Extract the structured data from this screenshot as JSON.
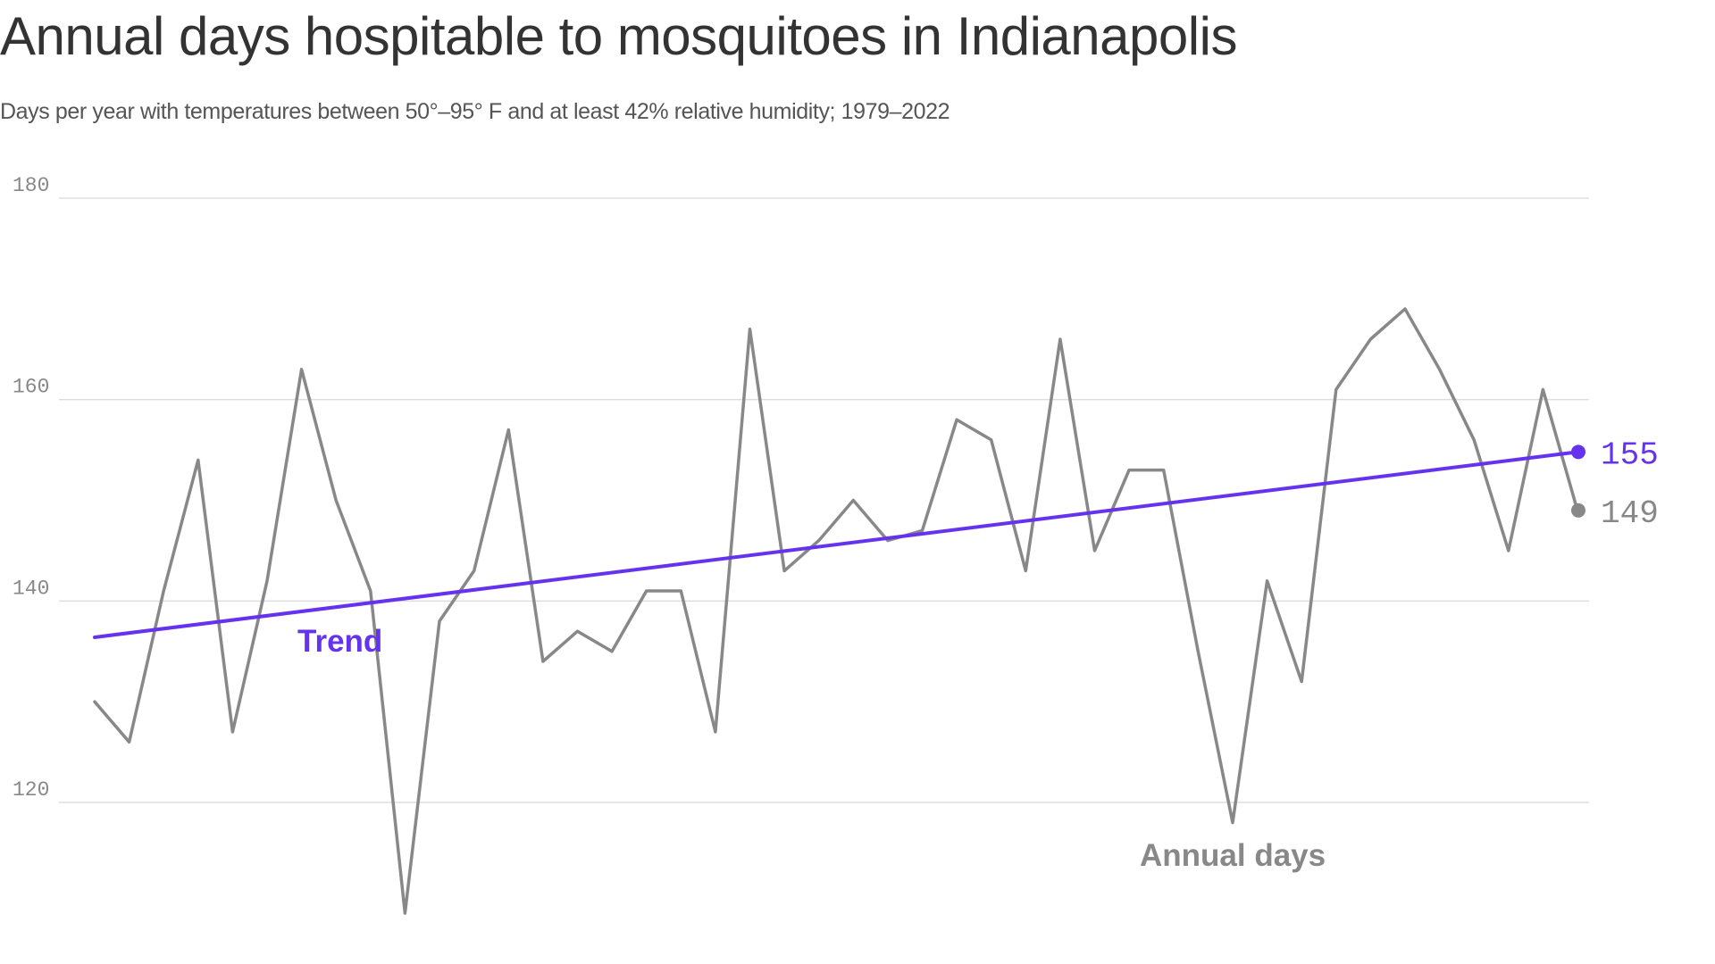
{
  "title": "Annual days hospitable to mosquitoes in Indianapolis",
  "subtitle": "Days per year with temperatures between 50°–95° F and at least 42% relative humidity; 1979–2022",
  "colors": {
    "annual": "#888888",
    "trend": "#6533ee",
    "grid": "#dddddd",
    "text": "#333333"
  },
  "chart_data": {
    "type": "line",
    "title": "Annual days hospitable to mosquitoes in Indianapolis",
    "xlabel": "",
    "ylabel": "",
    "ylim": [
      107,
      180
    ],
    "yticks": [
      120,
      140,
      160,
      180
    ],
    "ytick_labels": [
      "120",
      "140",
      "160",
      "180"
    ],
    "x": [
      1979,
      1980,
      1981,
      1982,
      1983,
      1984,
      1985,
      1986,
      1987,
      1988,
      1989,
      1990,
      1991,
      1992,
      1993,
      1994,
      1995,
      1996,
      1997,
      1998,
      1999,
      2000,
      2001,
      2002,
      2003,
      2004,
      2005,
      2006,
      2007,
      2008,
      2009,
      2010,
      2011,
      2012,
      2013,
      2014,
      2015,
      2016,
      2017,
      2018,
      2019,
      2020,
      2021,
      2022
    ],
    "series": [
      {
        "name": "Annual days",
        "label": "Annual days",
        "end_label": "149",
        "values": [
          130,
          126,
          141,
          154,
          127,
          142,
          163,
          150,
          141,
          109,
          138,
          143,
          157,
          134,
          137,
          135,
          141,
          141,
          127,
          167,
          143,
          146,
          150,
          146,
          147,
          158,
          156,
          143,
          166,
          145,
          153,
          153,
          135,
          118,
          142,
          132,
          161,
          166,
          169,
          163,
          156,
          145,
          161,
          149
        ]
      },
      {
        "name": "Trend",
        "label": "Trend",
        "end_label": "155",
        "start": 136.4,
        "end": 154.8
      }
    ]
  }
}
